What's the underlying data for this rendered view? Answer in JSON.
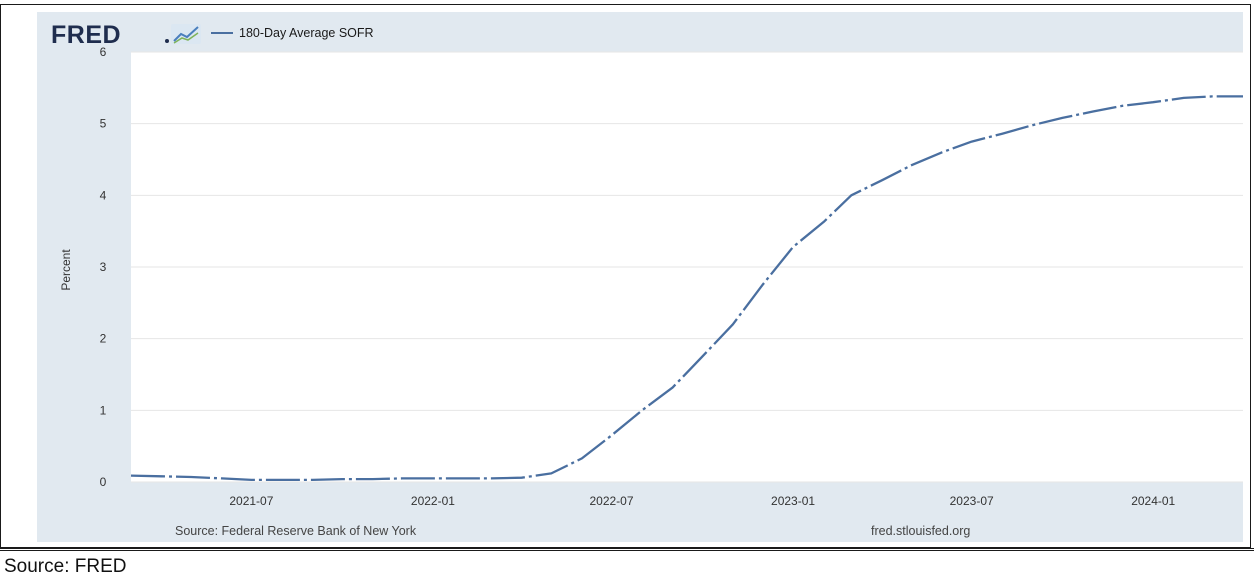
{
  "page": {
    "caption": "Source: FRED"
  },
  "chart_data": {
    "type": "line",
    "logo_text": "FRED",
    "series": [
      {
        "name": "180-Day Average SOFR",
        "color": "#4a6fa0",
        "points": [
          [
            "2021-03-01",
            0.09
          ],
          [
            "2021-04-01",
            0.08
          ],
          [
            "2021-05-01",
            0.07
          ],
          [
            "2021-06-01",
            0.05
          ],
          [
            "2021-07-01",
            0.03
          ],
          [
            "2021-08-01",
            0.03
          ],
          [
            "2021-09-01",
            0.03
          ],
          [
            "2021-10-01",
            0.04
          ],
          [
            "2021-11-01",
            0.04
          ],
          [
            "2021-12-01",
            0.05
          ],
          [
            "2022-01-01",
            0.05
          ],
          [
            "2022-02-01",
            0.05
          ],
          [
            "2022-03-01",
            0.05
          ],
          [
            "2022-04-01",
            0.06
          ],
          [
            "2022-05-01",
            0.12
          ],
          [
            "2022-06-01",
            0.33
          ],
          [
            "2022-07-01",
            0.65
          ],
          [
            "2022-08-01",
            1.0
          ],
          [
            "2022-09-01",
            1.32
          ],
          [
            "2022-10-01",
            1.75
          ],
          [
            "2022-11-01",
            2.2
          ],
          [
            "2022-12-01",
            2.75
          ],
          [
            "2023-01-01",
            3.28
          ],
          [
            "2023-02-01",
            3.63
          ],
          [
            "2023-03-01",
            4.0
          ],
          [
            "2023-04-01",
            4.21
          ],
          [
            "2023-05-01",
            4.42
          ],
          [
            "2023-06-01",
            4.6
          ],
          [
            "2023-07-01",
            4.75
          ],
          [
            "2023-08-01",
            4.86
          ],
          [
            "2023-09-01",
            4.98
          ],
          [
            "2023-10-01",
            5.08
          ],
          [
            "2023-11-01",
            5.17
          ],
          [
            "2023-12-01",
            5.25
          ],
          [
            "2024-01-01",
            5.3
          ],
          [
            "2024-02-01",
            5.36
          ],
          [
            "2024-03-01",
            5.38
          ],
          [
            "2024-04-01",
            5.38
          ]
        ]
      }
    ],
    "x_range": [
      "2021-03-01",
      "2024-04-01"
    ],
    "x_ticks": [
      "2021-07",
      "2022-01",
      "2022-07",
      "2023-01",
      "2023-07",
      "2024-01"
    ],
    "ylabel": "Percent",
    "ylim": [
      0,
      6
    ],
    "y_ticks": [
      "0",
      "1",
      "2",
      "3",
      "4",
      "5",
      "6"
    ],
    "grid": true,
    "legend_position": "top-left",
    "source_left": "Source: Federal Reserve Bank of New York",
    "source_right": "fred.stlouisfed.org"
  }
}
